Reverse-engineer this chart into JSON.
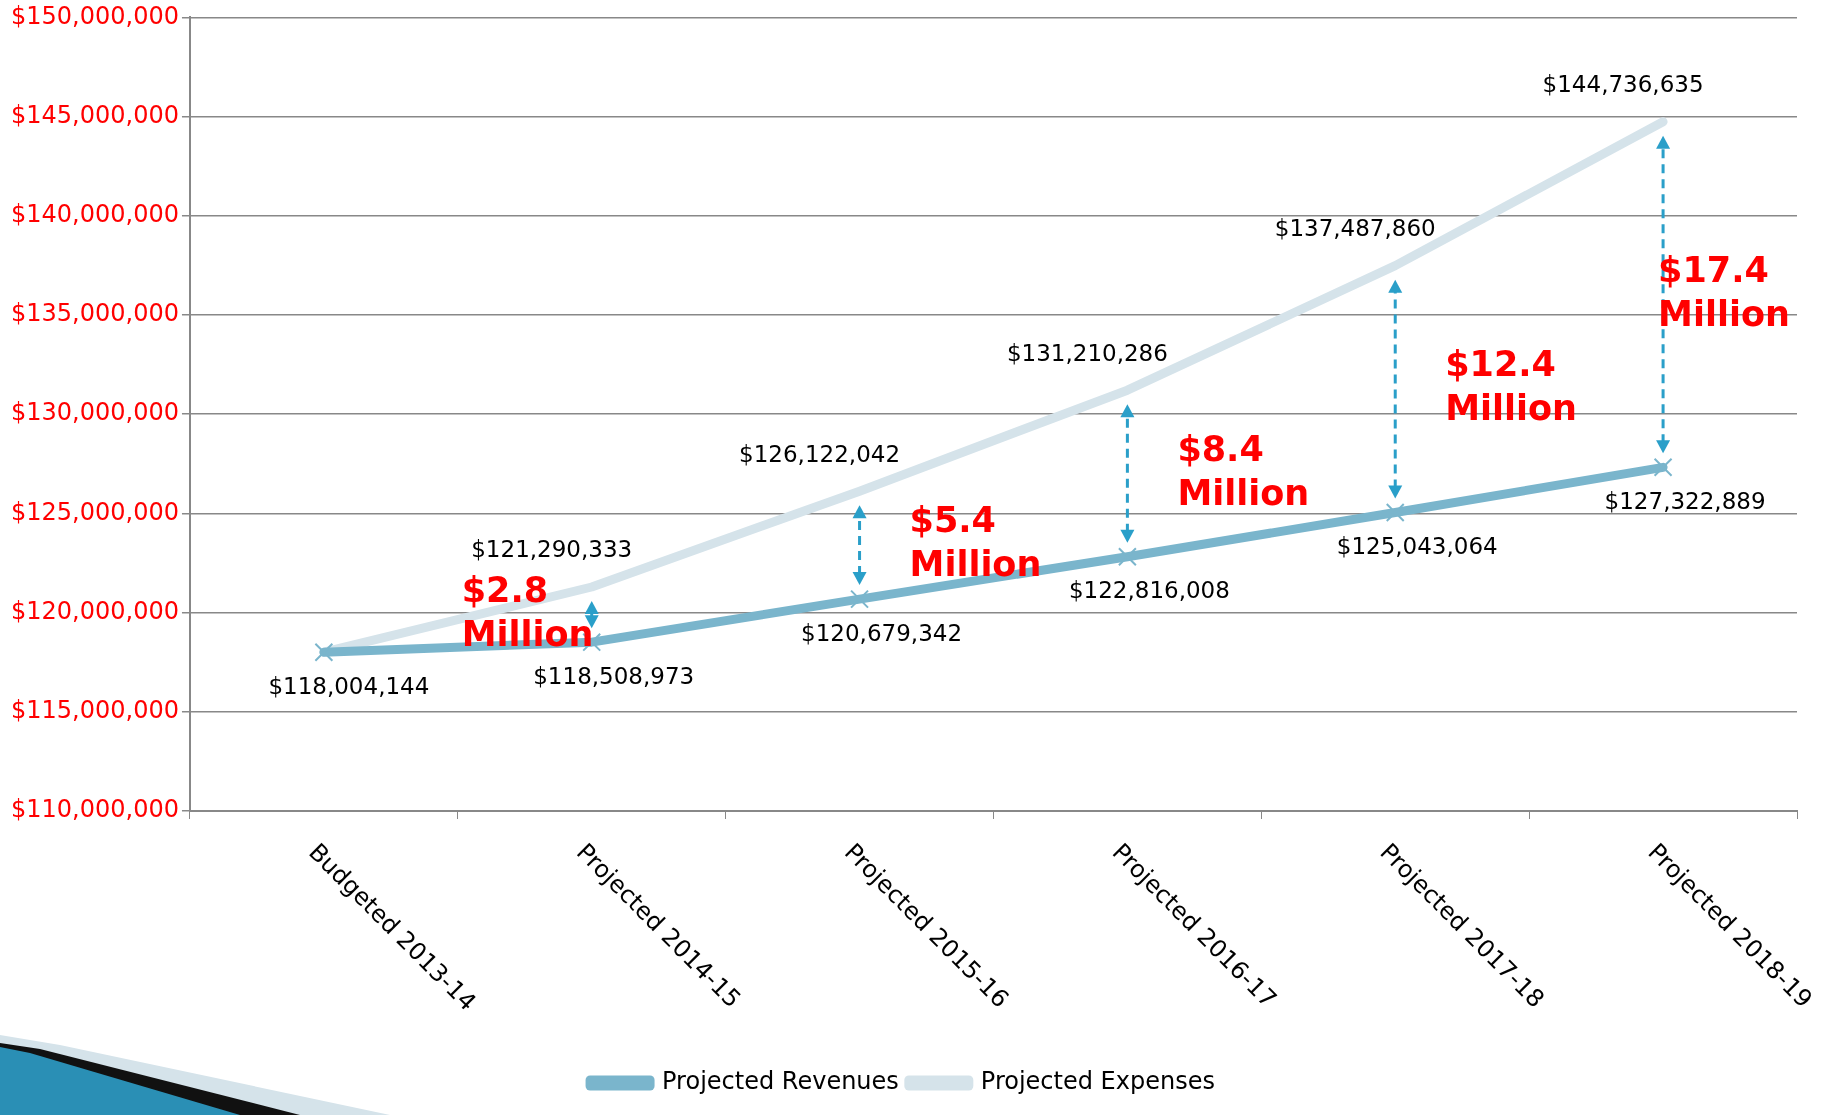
{
  "chart_data": {
    "type": "line",
    "categories": [
      "Budgeted 2013-14",
      "Projected 2014-15",
      "Projected 2015-16",
      "Projected 2016-17",
      "Projected 2017-18",
      "Projected 2018-19"
    ],
    "series": [
      {
        "name": "Projected Revenues",
        "color": "#7ab5cc",
        "marker": "cross",
        "values": [
          118004144,
          118508973,
          120679342,
          122816008,
          125043064,
          127322889
        ],
        "value_labels": [
          "$118,004,144",
          "$118,508,973",
          "$120,679,342",
          "$122,816,008",
          "$125,043,064",
          "$127,322,889"
        ]
      },
      {
        "name": "Projected Expenses",
        "color": "#d5e3ea",
        "marker": "none",
        "values": [
          118004144,
          121290333,
          126122042,
          131210286,
          137487860,
          144736635
        ],
        "value_labels": [
          null,
          "$121,290,333",
          "$126,122,042",
          "$131,210,286",
          "$137,487,860",
          "$144,736,635"
        ]
      }
    ],
    "ylim": [
      110000000,
      150000000
    ],
    "yticks": [
      {
        "value": 110000000,
        "label": "$110,000,000"
      },
      {
        "value": 115000000,
        "label": "$115,000,000"
      },
      {
        "value": 120000000,
        "label": "$120,000,000"
      },
      {
        "value": 125000000,
        "label": "$125,000,000"
      },
      {
        "value": 130000000,
        "label": "$130,000,000"
      },
      {
        "value": 135000000,
        "label": "$135,000,000"
      },
      {
        "value": 140000000,
        "label": "$140,000,000"
      },
      {
        "value": 145000000,
        "label": "$145,000,000"
      },
      {
        "value": 150000000,
        "label": "$150,000,000"
      }
    ],
    "grid": "y",
    "legend": "bottom",
    "line_style": "solid",
    "annotations": [
      "$2.8 Million",
      "$5.4 Million",
      "$8.4 Million",
      "$12.4 Million",
      "$17.4 Million"
    ]
  }
}
